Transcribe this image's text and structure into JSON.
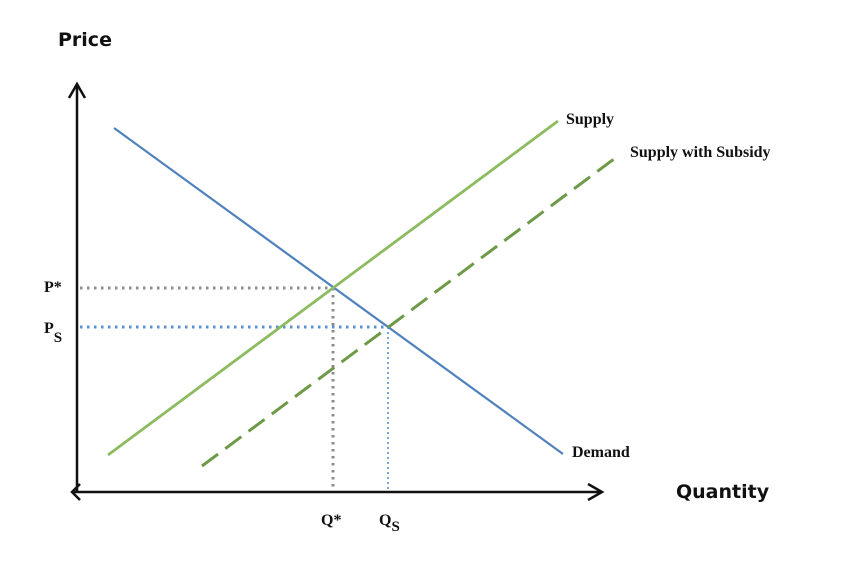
{
  "diagram": {
    "y_axis_title": "Price",
    "x_axis_title": "Quantity",
    "curves": {
      "supply": {
        "label": "Supply",
        "color": "#8dbb5f"
      },
      "supply_subsidy": {
        "label": "Supply with Subsidy",
        "color": "#6e9a48"
      },
      "demand": {
        "label": "Demand",
        "color": "#4f81bd"
      }
    },
    "price_ticks": {
      "p_star": {
        "text": "P*"
      },
      "p_s": {
        "main": "P",
        "sub": "S"
      }
    },
    "quantity_ticks": {
      "q_star": {
        "text": "Q*"
      },
      "q_s": {
        "main": "Q",
        "sub": "S"
      }
    },
    "colors": {
      "axis": "#111111",
      "guide_gray": "#8c8c8c",
      "guide_blue": "#5a8fd0"
    }
  }
}
